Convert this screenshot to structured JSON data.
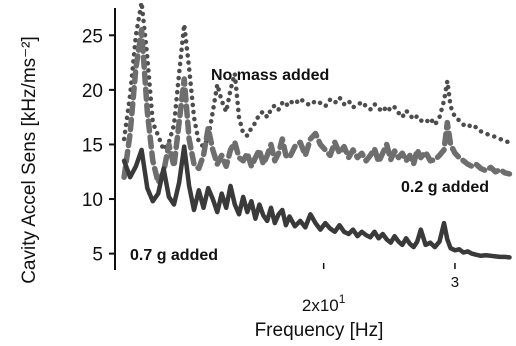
{
  "chart_data": {
    "type": "line",
    "xlabel": "Frequency [Hz]",
    "ylabel": "Cavity Accel Sens [kHz/ms⁻²]",
    "x_scale": "log",
    "xlim": [
      10.5,
      36
    ],
    "ylim": [
      3.5,
      27.5
    ],
    "y_ticks": [
      5,
      10,
      15,
      20,
      25
    ],
    "x_ticks": [
      {
        "value": 20,
        "label": "2x10",
        "sup": "1"
      },
      {
        "value": 30,
        "label": "3",
        "sup": ""
      }
    ],
    "annotations": [
      {
        "text": "No mass added"
      },
      {
        "text": "0.2 g added"
      },
      {
        "text": "0.7 g added"
      }
    ],
    "series": [
      {
        "style": "dotted",
        "color": "#4d4d4d",
        "x": [
          10.8,
          11.0,
          11.2,
          11.4,
          11.6,
          11.8,
          12.0,
          12.2,
          12.4,
          12.6,
          12.8,
          13.0,
          13.2,
          13.4,
          13.6,
          13.8,
          14.0,
          14.2,
          14.4,
          14.6,
          14.8,
          15.0,
          15.2,
          15.4,
          15.6,
          15.8,
          16.0,
          16.2,
          16.4,
          16.6,
          16.8,
          17.0,
          17.2,
          17.4,
          17.6,
          17.8,
          18.0,
          18.3,
          18.6,
          18.9,
          19.2,
          19.5,
          19.8,
          20.1,
          20.4,
          20.7,
          21.0,
          21.3,
          21.6,
          21.9,
          22.2,
          22.5,
          22.8,
          23.1,
          23.4,
          23.7,
          24.0,
          24.3,
          24.6,
          24.9,
          25.2,
          25.5,
          25.8,
          26.1,
          26.4,
          26.7,
          27.0,
          27.4,
          27.8,
          28.2,
          28.6,
          29.0,
          29.3,
          29.6,
          30.0,
          30.4,
          30.8,
          31.2,
          31.6,
          32.0,
          32.5,
          33.0,
          33.5,
          34.0,
          34.5,
          35.0,
          35.5
        ],
        "values": [
          15.5,
          19.5,
          25.0,
          28.0,
          23.0,
          17.0,
          15.8,
          14.5,
          15.2,
          16.8,
          21.5,
          26.0,
          22.0,
          17.5,
          15.2,
          14.8,
          15.6,
          18.0,
          20.5,
          19.0,
          18.0,
          20.0,
          21.5,
          17.5,
          16.0,
          15.8,
          16.5,
          17.0,
          17.8,
          18.0,
          17.5,
          18.2,
          18.6,
          18.2,
          18.8,
          18.5,
          19.0,
          18.7,
          19.2,
          18.8,
          18.6,
          19.0,
          18.8,
          18.5,
          19.1,
          18.8,
          19.3,
          18.7,
          19.0,
          18.4,
          18.6,
          18.9,
          18.5,
          18.2,
          18.7,
          18.3,
          18.0,
          18.5,
          18.1,
          18.4,
          17.9,
          17.5,
          18.1,
          17.7,
          17.3,
          17.6,
          17.2,
          17.0,
          17.4,
          16.8,
          17.5,
          19.0,
          20.8,
          18.5,
          17.5,
          17.2,
          16.8,
          16.9,
          16.5,
          16.6,
          16.2,
          16.0,
          15.8,
          15.7,
          15.5,
          15.3,
          15.2
        ]
      },
      {
        "style": "dashed",
        "color": "#6e6e6e",
        "x": [
          10.8,
          11.0,
          11.2,
          11.4,
          11.6,
          11.8,
          12.0,
          12.2,
          12.4,
          12.6,
          12.8,
          13.0,
          13.2,
          13.4,
          13.6,
          13.8,
          14.0,
          14.2,
          14.4,
          14.6,
          14.8,
          15.0,
          15.2,
          15.4,
          15.6,
          15.8,
          16.0,
          16.2,
          16.4,
          16.6,
          16.8,
          17.0,
          17.2,
          17.4,
          17.6,
          17.8,
          18.0,
          18.3,
          18.6,
          18.9,
          19.2,
          19.5,
          19.8,
          20.1,
          20.4,
          20.7,
          21.0,
          21.3,
          21.6,
          21.9,
          22.2,
          22.5,
          22.8,
          23.1,
          23.4,
          23.7,
          24.0,
          24.3,
          24.6,
          24.9,
          25.2,
          25.5,
          25.8,
          26.1,
          26.4,
          26.7,
          27.0,
          27.4,
          27.8,
          28.2,
          28.6,
          29.0,
          29.3,
          29.6,
          30.0,
          30.4,
          30.8,
          31.2,
          31.6,
          32.0,
          32.5,
          33.0,
          33.5,
          34.0,
          34.5,
          35.0,
          35.5
        ],
        "values": [
          12.0,
          16.0,
          22.0,
          25.5,
          18.0,
          13.5,
          11.5,
          12.5,
          15.0,
          13.0,
          17.0,
          21.0,
          15.5,
          13.2,
          12.8,
          14.0,
          16.5,
          14.5,
          13.2,
          14.0,
          13.0,
          14.5,
          15.2,
          13.8,
          13.5,
          14.2,
          13.0,
          13.8,
          14.5,
          13.2,
          14.0,
          15.0,
          13.5,
          14.2,
          15.5,
          14.0,
          13.8,
          14.8,
          15.2,
          14.0,
          15.5,
          16.0,
          15.0,
          14.5,
          14.0,
          15.2,
          14.2,
          14.8,
          13.8,
          14.5,
          13.8,
          14.2,
          13.5,
          14.0,
          14.6,
          13.4,
          14.2,
          15.0,
          13.6,
          14.4,
          13.8,
          14.2,
          13.5,
          14.0,
          13.2,
          14.5,
          13.8,
          14.3,
          13.5,
          13.6,
          14.0,
          14.5,
          17.0,
          15.0,
          14.2,
          13.8,
          13.5,
          13.2,
          13.0,
          13.2,
          12.8,
          12.6,
          12.9,
          12.5,
          12.7,
          12.4,
          12.3
        ]
      },
      {
        "style": "solid",
        "color": "#3a3a3a",
        "x": [
          10.8,
          11.0,
          11.2,
          11.4,
          11.6,
          11.8,
          12.0,
          12.2,
          12.4,
          12.6,
          12.8,
          13.0,
          13.2,
          13.4,
          13.6,
          13.8,
          14.0,
          14.2,
          14.4,
          14.6,
          14.8,
          15.0,
          15.2,
          15.4,
          15.6,
          15.8,
          16.0,
          16.2,
          16.4,
          16.6,
          16.8,
          17.0,
          17.2,
          17.4,
          17.6,
          17.8,
          18.0,
          18.3,
          18.6,
          18.9,
          19.2,
          19.5,
          19.8,
          20.1,
          20.4,
          20.7,
          21.0,
          21.3,
          21.6,
          21.9,
          22.2,
          22.5,
          22.8,
          23.1,
          23.4,
          23.7,
          24.0,
          24.3,
          24.6,
          24.9,
          25.2,
          25.5,
          25.8,
          26.1,
          26.4,
          26.7,
          27.0,
          27.4,
          27.8,
          28.2,
          28.6,
          29.0,
          29.3,
          29.6,
          30.0,
          30.4,
          30.8,
          31.2,
          31.6,
          32.0,
          32.5,
          33.0,
          33.5,
          34.0,
          34.5,
          35.0,
          35.5
        ],
        "values": [
          13.5,
          12.0,
          13.0,
          14.5,
          11.0,
          9.8,
          10.5,
          12.8,
          10.2,
          9.5,
          11.5,
          14.8,
          11.2,
          9.0,
          10.8,
          9.2,
          11.0,
          10.0,
          8.8,
          10.5,
          9.2,
          11.2,
          9.5,
          8.6,
          10.2,
          8.8,
          9.8,
          8.2,
          9.5,
          8.5,
          8.0,
          9.2,
          7.8,
          8.6,
          9.0,
          7.6,
          8.4,
          7.5,
          8.0,
          7.4,
          8.6,
          7.8,
          7.2,
          7.8,
          7.3,
          7.0,
          7.6,
          7.0,
          6.8,
          7.2,
          6.6,
          7.0,
          6.7,
          6.5,
          7.0,
          6.4,
          6.8,
          6.3,
          6.0,
          6.6,
          6.1,
          5.8,
          6.4,
          5.9,
          5.6,
          6.1,
          7.2,
          5.8,
          6.0,
          5.6,
          6.1,
          7.8,
          6.3,
          5.5,
          5.3,
          5.4,
          5.1,
          5.2,
          5.0,
          4.9,
          4.8,
          4.85,
          4.8,
          4.75,
          4.7,
          4.7,
          4.65
        ]
      }
    ]
  }
}
